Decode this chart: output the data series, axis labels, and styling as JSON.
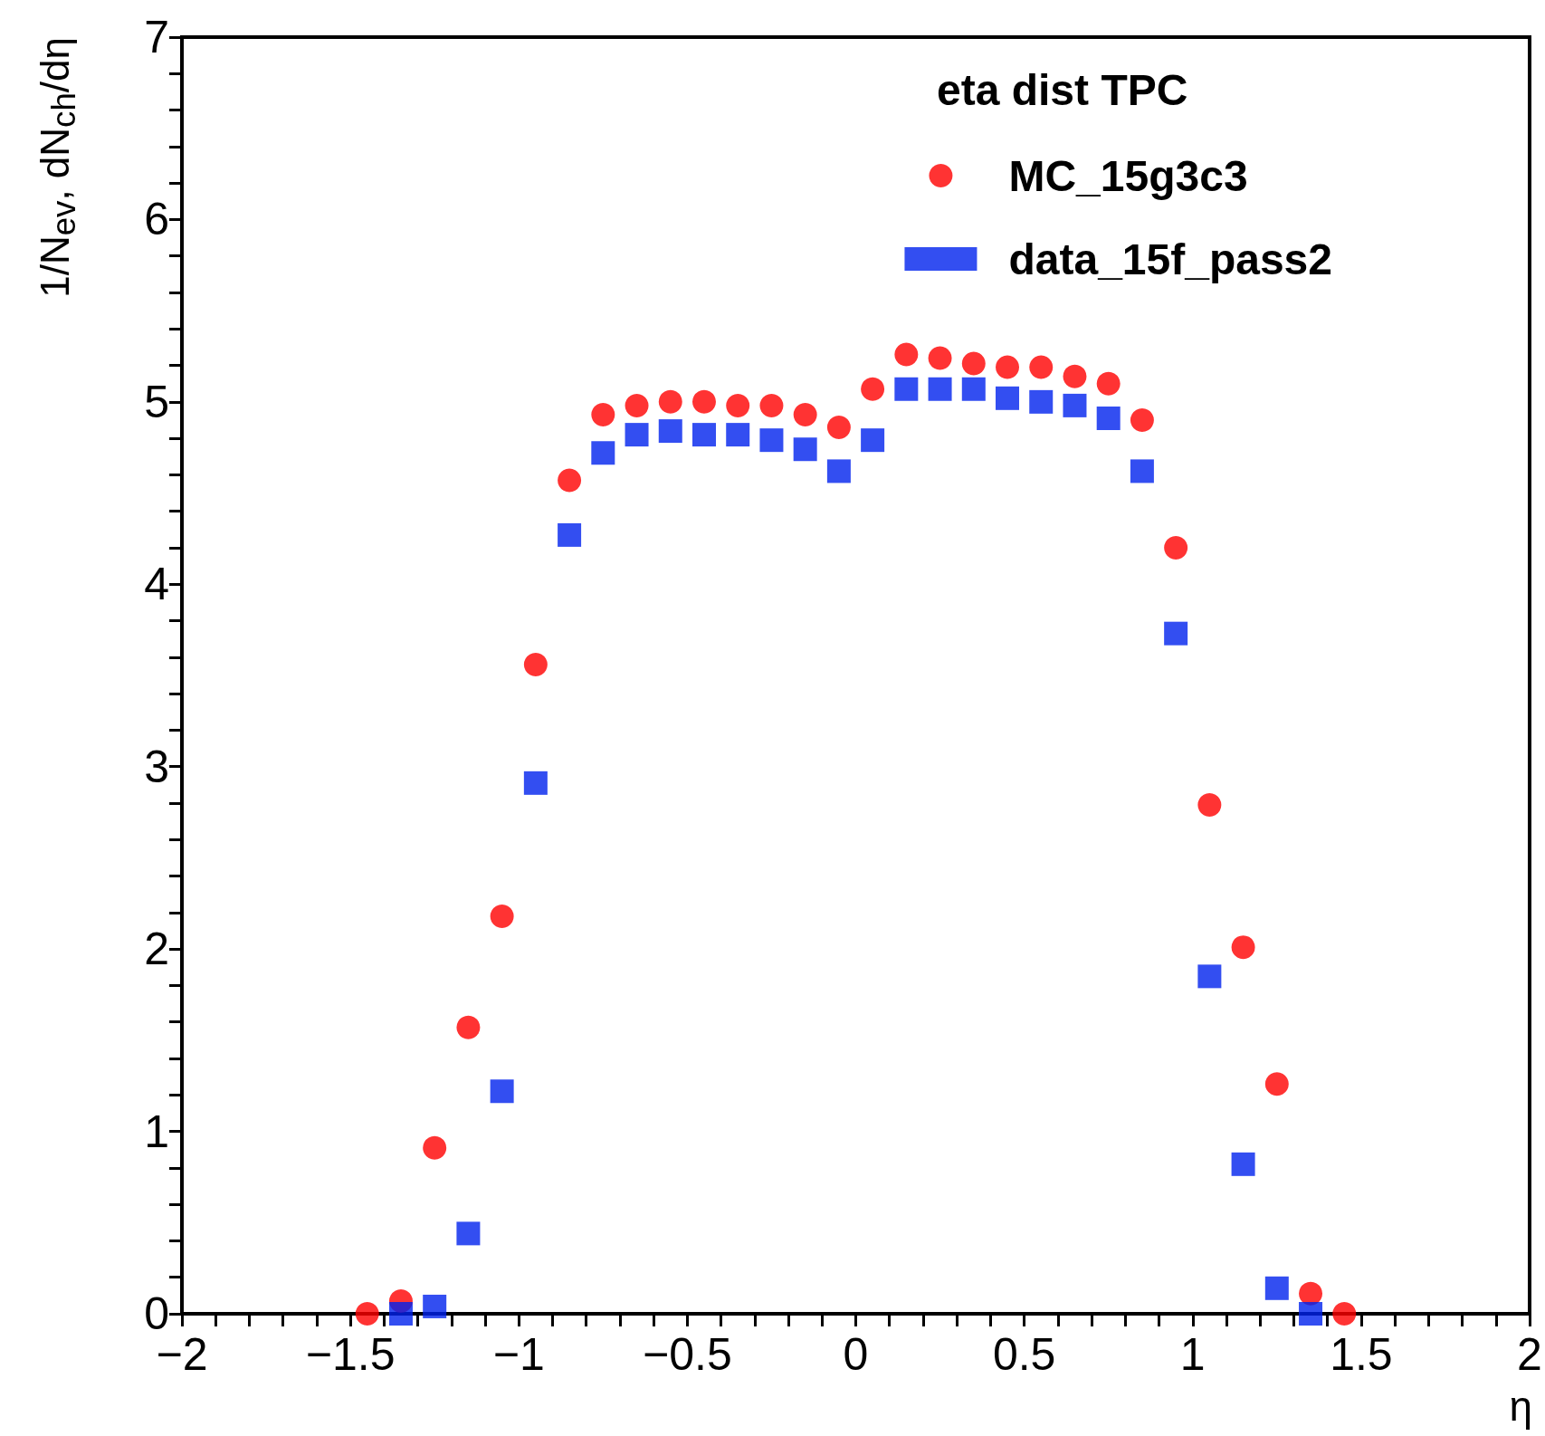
{
  "chart_data": {
    "type": "scatter",
    "xlabel": "η",
    "ylabel": "1/N$_{ev}$, dN$_{ch}$/dη",
    "legend_title": "eta dist TPC",
    "legend": "top right",
    "grid": false,
    "xlim": [
      -2,
      2
    ],
    "xticks": [
      {
        "value": -2,
        "label": "−2"
      },
      {
        "value": -1.9,
        "label": null
      },
      {
        "value": -1.8,
        "label": null
      },
      {
        "value": -1.7,
        "label": null
      },
      {
        "value": -1.6,
        "label": null
      },
      {
        "value": -1.5,
        "label": "−1.5"
      },
      {
        "value": -1.4,
        "label": null
      },
      {
        "value": -1.3,
        "label": null
      },
      {
        "value": -1.2,
        "label": null
      },
      {
        "value": -1.1,
        "label": null
      },
      {
        "value": -1,
        "label": "−1"
      },
      {
        "value": -0.9,
        "label": null
      },
      {
        "value": -0.8,
        "label": null
      },
      {
        "value": -0.7,
        "label": null
      },
      {
        "value": -0.6,
        "label": null
      },
      {
        "value": -0.5,
        "label": "−0.5"
      },
      {
        "value": -0.4,
        "label": null
      },
      {
        "value": -0.3,
        "label": null
      },
      {
        "value": -0.2,
        "label": null
      },
      {
        "value": -0.1,
        "label": null
      },
      0,
      {
        "value": 0.1,
        "label": null
      },
      {
        "value": 0.2,
        "label": null
      },
      {
        "value": 0.3,
        "label": null
      },
      {
        "value": 0.4,
        "label": null
      },
      0.5,
      {
        "value": 0.6,
        "label": null
      },
      {
        "value": 0.7,
        "label": null
      },
      {
        "value": 0.8,
        "label": null
      },
      {
        "value": 0.9,
        "label": null
      },
      1,
      {
        "value": 1.1,
        "label": null
      },
      {
        "value": 1.2,
        "label": null
      },
      {
        "value": 1.3,
        "label": null
      },
      {
        "value": 1.4,
        "label": null
      },
      1.5,
      {
        "value": 1.6,
        "label": null
      },
      {
        "value": 1.7,
        "label": null
      },
      {
        "value": 1.8,
        "label": null
      },
      {
        "value": 1.9,
        "label": null
      },
      2
    ],
    "ylim": [
      0,
      7
    ],
    "yticks": [
      0,
      {
        "value": 0.2,
        "label": null
      },
      {
        "value": 0.4,
        "label": null
      },
      {
        "value": 0.6,
        "label": null
      },
      {
        "value": 0.8,
        "label": null
      },
      1,
      {
        "value": 1.2,
        "label": null
      },
      {
        "value": 1.4,
        "label": null
      },
      {
        "value": 1.6,
        "label": null
      },
      {
        "value": 1.8,
        "label": null
      },
      2,
      {
        "value": 2.2,
        "label": null
      },
      {
        "value": 2.4,
        "label": null
      },
      {
        "value": 2.6,
        "label": null
      },
      {
        "value": 2.8,
        "label": null
      },
      3,
      {
        "value": 3.2,
        "label": null
      },
      {
        "value": 3.4,
        "label": null
      },
      {
        "value": 3.6,
        "label": null
      },
      {
        "value": 3.8,
        "label": null
      },
      4,
      {
        "value": 4.2,
        "label": null
      },
      {
        "value": 4.4,
        "label": null
      },
      {
        "value": 4.6,
        "label": null
      },
      {
        "value": 4.8,
        "label": null
      },
      5,
      {
        "value": 5.2,
        "label": null
      },
      {
        "value": 5.4,
        "label": null
      },
      {
        "value": 5.6,
        "label": null
      },
      {
        "value": 5.8,
        "label": null
      },
      6,
      {
        "value": 6.2,
        "label": null
      },
      {
        "value": 6.4,
        "label": null
      },
      {
        "value": 6.6,
        "label": null
      },
      {
        "value": 6.8,
        "label": null
      },
      7
    ],
    "series": [
      {
        "name": "MC_15g3c3",
        "color": "#ff0000",
        "marker": "circle",
        "x": [
          -1.45,
          -1.35,
          -1.25,
          -1.15,
          -1.05,
          -0.95,
          -0.85,
          -0.75,
          -0.65,
          -0.55,
          -0.45,
          -0.35,
          -0.25,
          -0.15,
          -0.05,
          0.05,
          0.15,
          0.25,
          0.35,
          0.45,
          0.55,
          0.65,
          0.75,
          0.85,
          0.95,
          1.05,
          1.15,
          1.25,
          1.35,
          1.45
        ],
        "values": [
          0,
          0.07,
          0.91,
          1.57,
          2.18,
          3.56,
          4.57,
          4.93,
          4.98,
          5.0,
          5.0,
          4.98,
          4.98,
          4.93,
          4.86,
          5.07,
          5.26,
          5.24,
          5.21,
          5.19,
          5.19,
          5.14,
          5.1,
          4.9,
          4.2,
          2.79,
          2.01,
          1.26,
          0.11,
          0
        ]
      },
      {
        "name": "data_15f_pass2",
        "color": "#0022ee",
        "marker": "square",
        "x": [
          -1.35,
          -1.25,
          -1.15,
          -1.05,
          -0.95,
          -0.85,
          -0.75,
          -0.65,
          -0.55,
          -0.45,
          -0.35,
          -0.25,
          -0.15,
          -0.05,
          0.05,
          0.15,
          0.25,
          0.35,
          0.45,
          0.55,
          0.65,
          0.75,
          0.85,
          0.95,
          1.05,
          1.15,
          1.25,
          1.35
        ],
        "values": [
          0,
          0.04,
          0.44,
          1.22,
          2.91,
          4.27,
          4.72,
          4.82,
          4.84,
          4.82,
          4.82,
          4.79,
          4.74,
          4.62,
          4.79,
          5.07,
          5.07,
          5.07,
          5.02,
          5.0,
          4.98,
          4.91,
          4.62,
          3.73,
          1.85,
          0.82,
          0.14,
          0
        ]
      }
    ]
  }
}
